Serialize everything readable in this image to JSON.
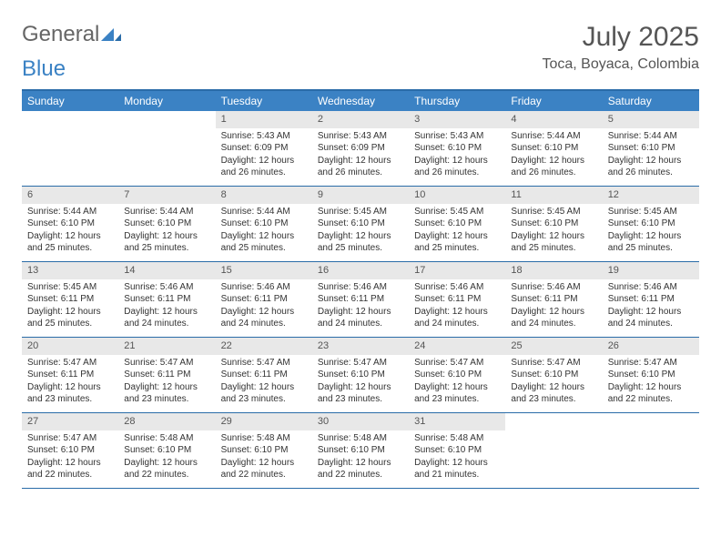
{
  "brand": {
    "word1": "General",
    "word2": "Blue"
  },
  "title": "July 2025",
  "location": "Toca, Boyaca, Colombia",
  "colors": {
    "header_bg": "#3b82c4",
    "header_text": "#ffffff",
    "rule": "#2a6ca8",
    "daynum_bg": "#e8e8e8",
    "text": "#333333",
    "title_color": "#555555"
  },
  "day_headers": [
    "Sunday",
    "Monday",
    "Tuesday",
    "Wednesday",
    "Thursday",
    "Friday",
    "Saturday"
  ],
  "weeks": [
    [
      {
        "n": "",
        "sr": "",
        "ss": "",
        "dl": ""
      },
      {
        "n": "",
        "sr": "",
        "ss": "",
        "dl": ""
      },
      {
        "n": "1",
        "sr": "5:43 AM",
        "ss": "6:09 PM",
        "dl": "12 hours and 26 minutes."
      },
      {
        "n": "2",
        "sr": "5:43 AM",
        "ss": "6:09 PM",
        "dl": "12 hours and 26 minutes."
      },
      {
        "n": "3",
        "sr": "5:43 AM",
        "ss": "6:10 PM",
        "dl": "12 hours and 26 minutes."
      },
      {
        "n": "4",
        "sr": "5:44 AM",
        "ss": "6:10 PM",
        "dl": "12 hours and 26 minutes."
      },
      {
        "n": "5",
        "sr": "5:44 AM",
        "ss": "6:10 PM",
        "dl": "12 hours and 26 minutes."
      }
    ],
    [
      {
        "n": "6",
        "sr": "5:44 AM",
        "ss": "6:10 PM",
        "dl": "12 hours and 25 minutes."
      },
      {
        "n": "7",
        "sr": "5:44 AM",
        "ss": "6:10 PM",
        "dl": "12 hours and 25 minutes."
      },
      {
        "n": "8",
        "sr": "5:44 AM",
        "ss": "6:10 PM",
        "dl": "12 hours and 25 minutes."
      },
      {
        "n": "9",
        "sr": "5:45 AM",
        "ss": "6:10 PM",
        "dl": "12 hours and 25 minutes."
      },
      {
        "n": "10",
        "sr": "5:45 AM",
        "ss": "6:10 PM",
        "dl": "12 hours and 25 minutes."
      },
      {
        "n": "11",
        "sr": "5:45 AM",
        "ss": "6:10 PM",
        "dl": "12 hours and 25 minutes."
      },
      {
        "n": "12",
        "sr": "5:45 AM",
        "ss": "6:10 PM",
        "dl": "12 hours and 25 minutes."
      }
    ],
    [
      {
        "n": "13",
        "sr": "5:45 AM",
        "ss": "6:11 PM",
        "dl": "12 hours and 25 minutes."
      },
      {
        "n": "14",
        "sr": "5:46 AM",
        "ss": "6:11 PM",
        "dl": "12 hours and 24 minutes."
      },
      {
        "n": "15",
        "sr": "5:46 AM",
        "ss": "6:11 PM",
        "dl": "12 hours and 24 minutes."
      },
      {
        "n": "16",
        "sr": "5:46 AM",
        "ss": "6:11 PM",
        "dl": "12 hours and 24 minutes."
      },
      {
        "n": "17",
        "sr": "5:46 AM",
        "ss": "6:11 PM",
        "dl": "12 hours and 24 minutes."
      },
      {
        "n": "18",
        "sr": "5:46 AM",
        "ss": "6:11 PM",
        "dl": "12 hours and 24 minutes."
      },
      {
        "n": "19",
        "sr": "5:46 AM",
        "ss": "6:11 PM",
        "dl": "12 hours and 24 minutes."
      }
    ],
    [
      {
        "n": "20",
        "sr": "5:47 AM",
        "ss": "6:11 PM",
        "dl": "12 hours and 23 minutes."
      },
      {
        "n": "21",
        "sr": "5:47 AM",
        "ss": "6:11 PM",
        "dl": "12 hours and 23 minutes."
      },
      {
        "n": "22",
        "sr": "5:47 AM",
        "ss": "6:11 PM",
        "dl": "12 hours and 23 minutes."
      },
      {
        "n": "23",
        "sr": "5:47 AM",
        "ss": "6:10 PM",
        "dl": "12 hours and 23 minutes."
      },
      {
        "n": "24",
        "sr": "5:47 AM",
        "ss": "6:10 PM",
        "dl": "12 hours and 23 minutes."
      },
      {
        "n": "25",
        "sr": "5:47 AM",
        "ss": "6:10 PM",
        "dl": "12 hours and 23 minutes."
      },
      {
        "n": "26",
        "sr": "5:47 AM",
        "ss": "6:10 PM",
        "dl": "12 hours and 22 minutes."
      }
    ],
    [
      {
        "n": "27",
        "sr": "5:47 AM",
        "ss": "6:10 PM",
        "dl": "12 hours and 22 minutes."
      },
      {
        "n": "28",
        "sr": "5:48 AM",
        "ss": "6:10 PM",
        "dl": "12 hours and 22 minutes."
      },
      {
        "n": "29",
        "sr": "5:48 AM",
        "ss": "6:10 PM",
        "dl": "12 hours and 22 minutes."
      },
      {
        "n": "30",
        "sr": "5:48 AM",
        "ss": "6:10 PM",
        "dl": "12 hours and 22 minutes."
      },
      {
        "n": "31",
        "sr": "5:48 AM",
        "ss": "6:10 PM",
        "dl": "12 hours and 21 minutes."
      },
      {
        "n": "",
        "sr": "",
        "ss": "",
        "dl": ""
      },
      {
        "n": "",
        "sr": "",
        "ss": "",
        "dl": ""
      }
    ]
  ],
  "labels": {
    "sunrise": "Sunrise:",
    "sunset": "Sunset:",
    "daylight": "Daylight:"
  }
}
